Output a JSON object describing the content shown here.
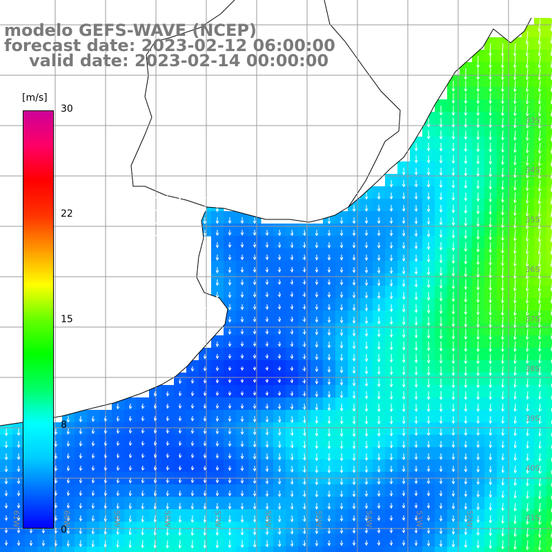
{
  "title": {
    "model": "modelo GEFS-WAVE (NCEP)",
    "forecast": "forecast date: 2023-02-12 06:00:00",
    "valid": "valid date: 2023-02-14 00:00:00"
  },
  "colorbar": {
    "unit": "[m/s]",
    "ticks": [
      "30",
      "22",
      "15",
      "8",
      "0"
    ],
    "tick_values": [
      30,
      22,
      15,
      8,
      0
    ],
    "min": 0,
    "max": 30,
    "colors": [
      "#0000ff",
      "#0066ff",
      "#00ccff",
      "#00ffff",
      "#00ff66",
      "#00ff00",
      "#66ff00",
      "#ffff00",
      "#ff9900",
      "#ff3300",
      "#ff0000",
      "#ff0066",
      "#cc0099"
    ]
  },
  "lat_labels": [
    "33S",
    "34S",
    "35S",
    "36S",
    "37S",
    "38S",
    "39S",
    "40S",
    "41S"
  ],
  "lon_labels": [
    "61W",
    "60W",
    "59W",
    "58W",
    "57W",
    "56W",
    "55W",
    "54W",
    "53W",
    "52W"
  ],
  "field": {
    "variable": "wind speed and direction",
    "land_color": "#ffffff",
    "grid_color": "#9a9a9a"
  }
}
